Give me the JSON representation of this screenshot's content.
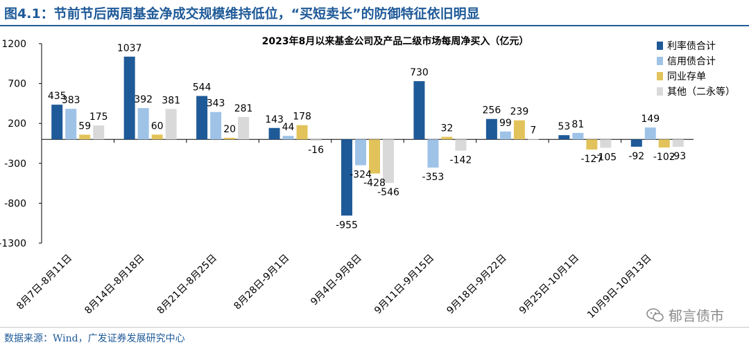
{
  "header": {
    "title": "图4.1：节前节后两周基金净成交规模维持低位，“买短卖长”的防御特征依旧明显"
  },
  "footer": {
    "source": "数据来源：Wind，广发证券发展研究中心"
  },
  "watermark": {
    "text": "郁言债市"
  },
  "chart_data": {
    "type": "bar",
    "title": "2023年8月以来基金公司及产品二级市场每周净买入（亿元）",
    "categories": [
      "8月7日-8月11日",
      "8月14日-8月18日",
      "8月21日-8月25日",
      "8月28日-9月1日",
      "9月4日-9月8日",
      "9月11日-9月15日",
      "9月18日-9月22日",
      "9月25日-10月1日",
      "10月9日-10月13日"
    ],
    "series": [
      {
        "name": "利率债合计",
        "color": "#1f5a98",
        "values": [
          435,
          1037,
          544,
          143,
          -955,
          730,
          256,
          53,
          -92
        ]
      },
      {
        "name": "信用债合计",
        "color": "#9fc3e7",
        "values": [
          383,
          392,
          343,
          44,
          -324,
          -353,
          99,
          81,
          149
        ]
      },
      {
        "name": "同业存单",
        "color": "#e2c35b",
        "values": [
          59,
          60,
          20,
          178,
          -428,
          32,
          239,
          -127,
          -102
        ]
      },
      {
        "name": "其他（二永等）",
        "color": "#d9d9d9",
        "values": [
          175,
          381,
          281,
          -16,
          -546,
          -142,
          7,
          -105,
          -93
        ]
      }
    ],
    "yticks": [
      1200,
      700,
      200,
      -300,
      -800,
      -1300
    ],
    "ylim": [
      -1300,
      1200
    ],
    "legend_position": "right",
    "grid": false
  }
}
